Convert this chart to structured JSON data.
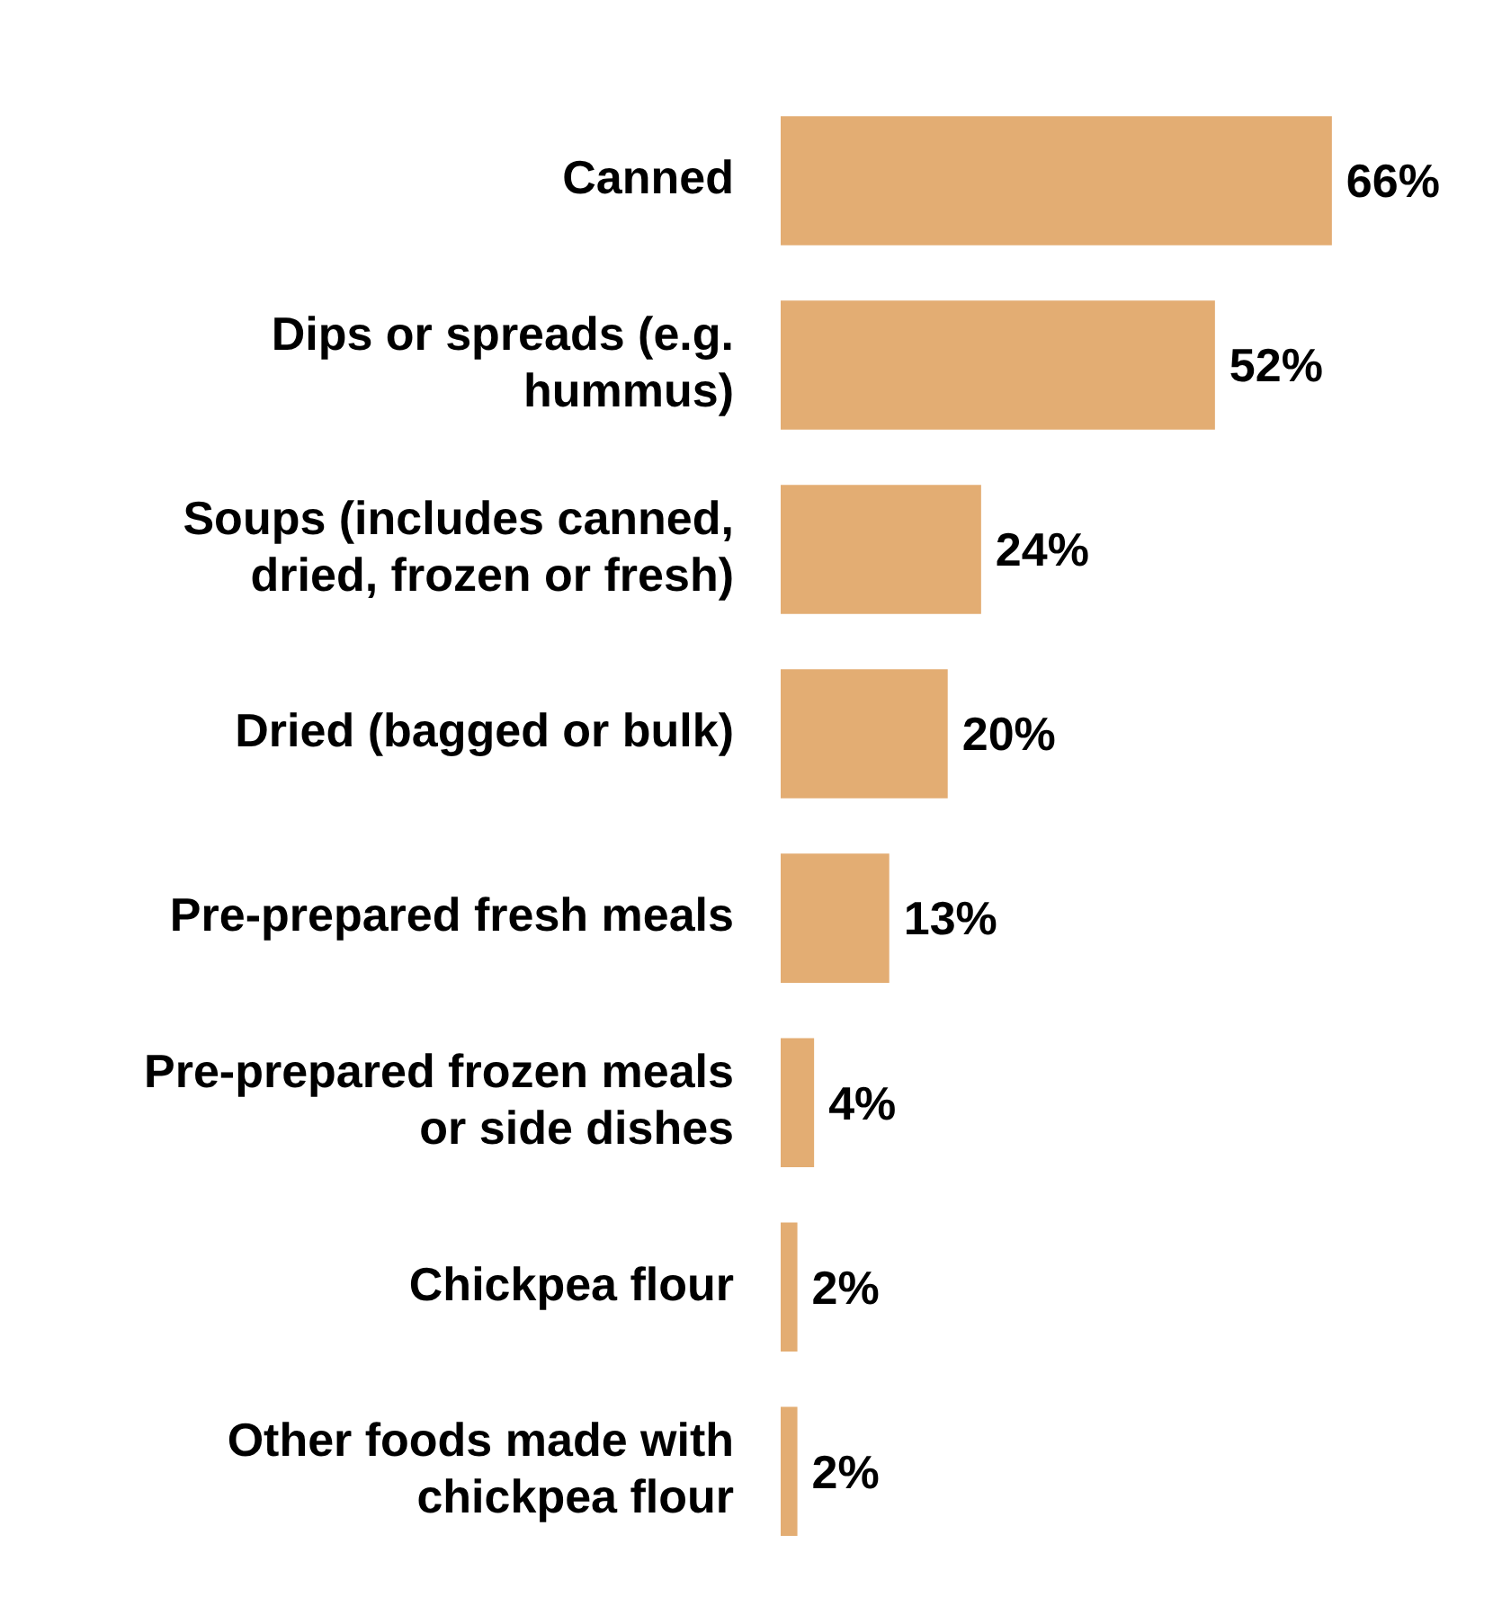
{
  "chart_data": {
    "type": "bar",
    "orientation": "horizontal",
    "categories": [
      "Canned",
      "Dips or spreads (e.g. hummus)",
      "Soups (includes canned, dried, frozen or fresh)",
      "Dried (bagged or bulk)",
      "Pre-prepared fresh meals",
      "Pre-prepared frozen meals or side dishes",
      "Chickpea flour",
      "Other foods made with chickpea flour"
    ],
    "values": [
      66,
      52,
      24,
      20,
      13,
      4,
      2,
      2
    ],
    "value_labels": [
      "66%",
      "52%",
      "24%",
      "20%",
      "13%",
      "4%",
      "2%",
      "2%"
    ],
    "color": "#e3ad73",
    "tick_labels": "y"
  }
}
